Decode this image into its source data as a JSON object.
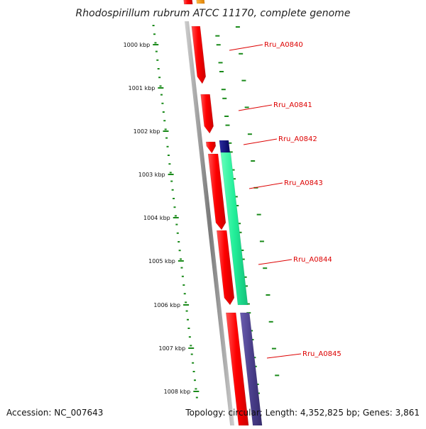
{
  "title": "Rhodospirillum rubrum ATCC 11170, complete genome",
  "footer": {
    "accession": "Accession: NC_007643",
    "topology": "Topology: circular; Length: 4,352,825 bp; Genes: 3,861"
  },
  "colors": {
    "backbone": "#7a7a7a",
    "ruler_ticks": "#1a8a1a",
    "gene_red": "#ff0000",
    "gene_teal": "#22ee99",
    "gene_navy": "#0a0a80",
    "gene_purple": "#4b3f8c",
    "gene_orange": "#ff9900",
    "label_red": "#dd0000"
  },
  "ruler": {
    "labels": [
      "1000 kbp",
      "1001 kbp",
      "1002 kbp",
      "1003 kbp",
      "1004 kbp",
      "1005 kbp",
      "1006 kbp",
      "1007 kbp",
      "1008 kbp"
    ]
  },
  "gene_labels": [
    "Rru_A0840",
    "Rru_A0841",
    "Rru_A0842",
    "Rru_A0843",
    "Rru_A0844",
    "Rru_A0845"
  ]
}
